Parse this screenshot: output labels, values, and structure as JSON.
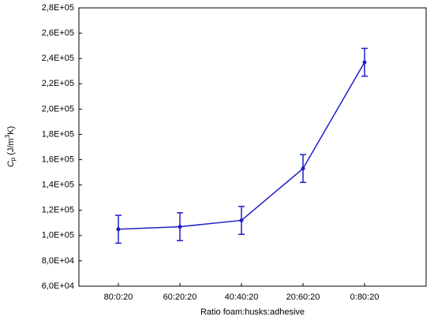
{
  "chart_data": {
    "type": "line",
    "xlabel": "Ratio foam:husks:adhesive",
    "ylabel": {
      "symbol": "C",
      "subscript": "p",
      "unit_start": " (J/m",
      "superscript": "3",
      "unit_end": "K)"
    },
    "categories": [
      "80:0:20",
      "60:20:20",
      "40:40:20",
      "20:60:20",
      "0:80:20"
    ],
    "series": [
      {
        "color": "#1f1fc8",
        "values": [
          105000,
          107000,
          112000,
          153000,
          237000
        ],
        "errors": [
          11000,
          11000,
          11000,
          11000,
          11000
        ]
      }
    ],
    "ylim": [
      60000,
      280000
    ],
    "yticks": [
      {
        "value": 60000,
        "label": "6,0E+04"
      },
      {
        "value": 80000,
        "label": "8,0E+04"
      },
      {
        "value": 100000,
        "label": "1,0E+05"
      },
      {
        "value": 120000,
        "label": "1,2E+05"
      },
      {
        "value": 140000,
        "label": "1,4E+05"
      },
      {
        "value": 160000,
        "label": "1,6E+05"
      },
      {
        "value": 180000,
        "label": "1,8E+05"
      },
      {
        "value": 200000,
        "label": "2,0E+05"
      },
      {
        "value": 220000,
        "label": "2,2E+05"
      },
      {
        "value": 240000,
        "label": "2,4E+05"
      },
      {
        "value": 260000,
        "label": "2,6E+05"
      },
      {
        "value": 280000,
        "label": "2,8E+05"
      }
    ],
    "grid": false
  }
}
